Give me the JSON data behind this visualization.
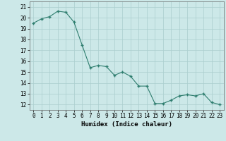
{
  "x": [
    0,
    1,
    2,
    3,
    4,
    5,
    6,
    7,
    8,
    9,
    10,
    11,
    12,
    13,
    14,
    15,
    16,
    17,
    18,
    19,
    20,
    21,
    22,
    23
  ],
  "y": [
    19.5,
    19.9,
    20.1,
    20.6,
    20.5,
    19.6,
    17.5,
    15.4,
    15.6,
    15.5,
    14.7,
    15.0,
    14.6,
    13.7,
    13.7,
    12.1,
    12.1,
    12.4,
    12.8,
    12.9,
    12.8,
    13.0,
    12.2,
    12.0
  ],
  "xlabel": "Humidex (Indice chaleur)",
  "xlim": [
    -0.5,
    23.5
  ],
  "ylim": [
    11.5,
    21.5
  ],
  "yticks": [
    12,
    13,
    14,
    15,
    16,
    17,
    18,
    19,
    20,
    21
  ],
  "xticks": [
    0,
    1,
    2,
    3,
    4,
    5,
    6,
    7,
    8,
    9,
    10,
    11,
    12,
    13,
    14,
    15,
    16,
    17,
    18,
    19,
    20,
    21,
    22,
    23
  ],
  "line_color": "#2e7d6e",
  "marker_color": "#2e7d6e",
  "bg_color": "#cce8e8",
  "grid_color": "#aacece",
  "axis_fontsize": 6.5,
  "tick_fontsize": 5.5
}
